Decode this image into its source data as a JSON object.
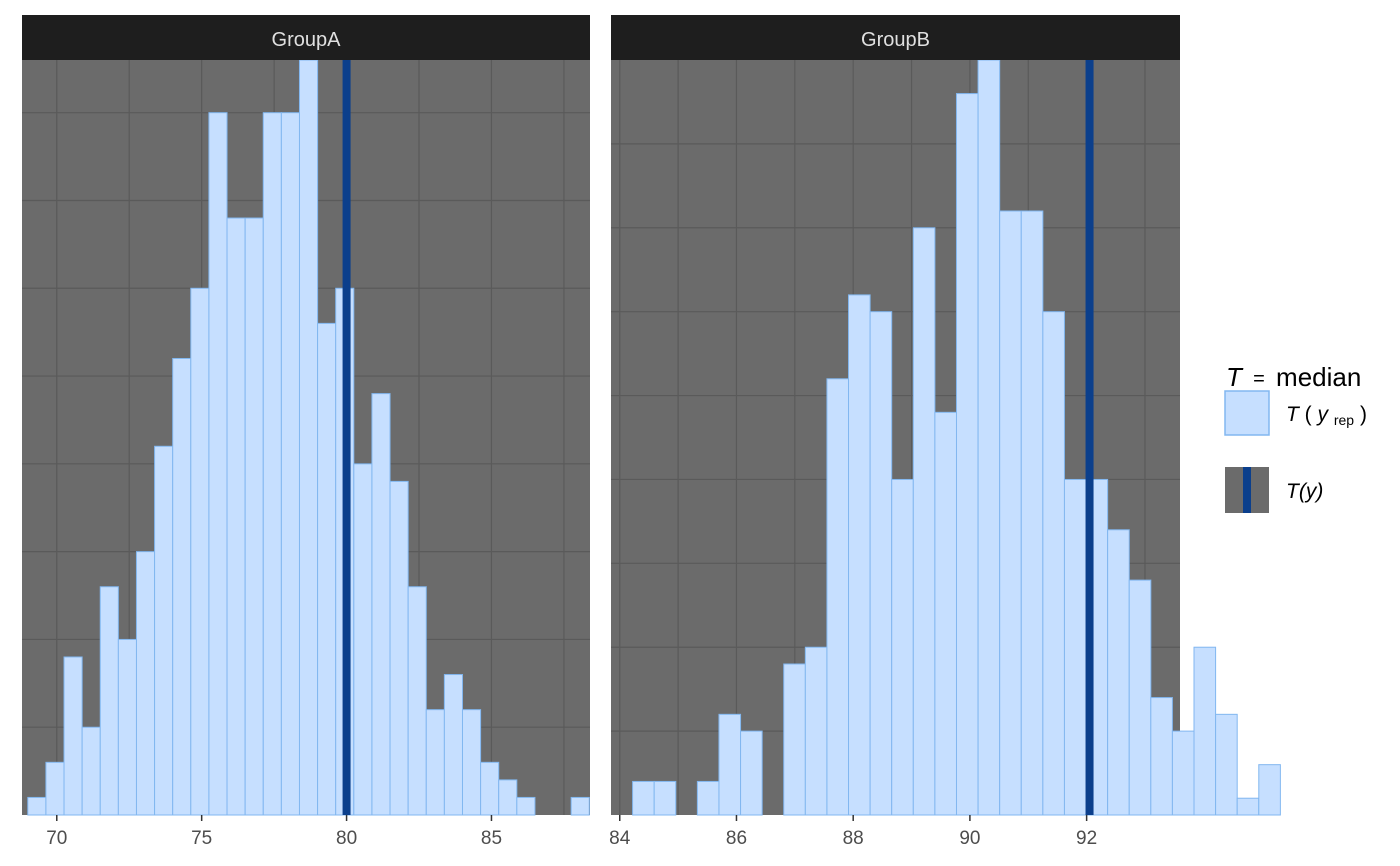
{
  "chart_data": {
    "type": "bar",
    "subtype": "histogram",
    "statistic": "median",
    "y_axis_labels_shown": false,
    "grid": true,
    "legend_placement": "right",
    "colors": {
      "panel_bg": "#6b6b6b",
      "grid_line": "#5a5a5a",
      "strip_bg": "#1e1e1e",
      "strip_text": "#e0e0e0",
      "bar_fill": "#c6dfff",
      "bar_stroke": "#82b7f0",
      "observed_line": "#0b3f8c"
    },
    "legend": {
      "title_T": "T",
      "title_eq": "=",
      "title_stat": "median",
      "yrep_T": "T",
      "yrep_open": "(",
      "yrep_y": "y",
      "yrep_sub": "rep",
      "yrep_close": ")",
      "obs_label": "T(y)"
    },
    "panels": [
      {
        "strip": "GroupA",
        "xlim": [
          68.8,
          88.4
        ],
        "ylim": [
          0,
          43
        ],
        "xticks": [
          70,
          75,
          80,
          85
        ],
        "xtick_labels": [
          "70",
          "75",
          "80",
          "85"
        ],
        "bin_start": 69.0,
        "bin_width": 0.625,
        "counts": [
          1,
          3,
          9,
          5,
          13,
          10,
          15,
          21,
          26,
          30,
          40,
          34,
          34,
          40,
          40,
          43,
          28,
          30,
          20,
          24,
          19,
          13,
          6,
          8,
          6,
          3,
          2,
          1,
          0,
          0,
          1
        ],
        "observed": 80.0
      },
      {
        "strip": "GroupB",
        "xlim": [
          83.85,
          93.6
        ],
        "ylim": [
          0,
          45
        ],
        "xticks": [
          84,
          86,
          88,
          90,
          92
        ],
        "xtick_labels": [
          "84",
          "86",
          "88",
          "90",
          "92"
        ],
        "bin_start": 84.22,
        "bin_width": 0.37,
        "counts": [
          2,
          2,
          0,
          2,
          6,
          5,
          0,
          9,
          10,
          26,
          31,
          30,
          20,
          35,
          24,
          43,
          45,
          36,
          36,
          30,
          20,
          20,
          17,
          14,
          7,
          5,
          10,
          6,
          1,
          3
        ],
        "observed": 92.05
      }
    ]
  }
}
